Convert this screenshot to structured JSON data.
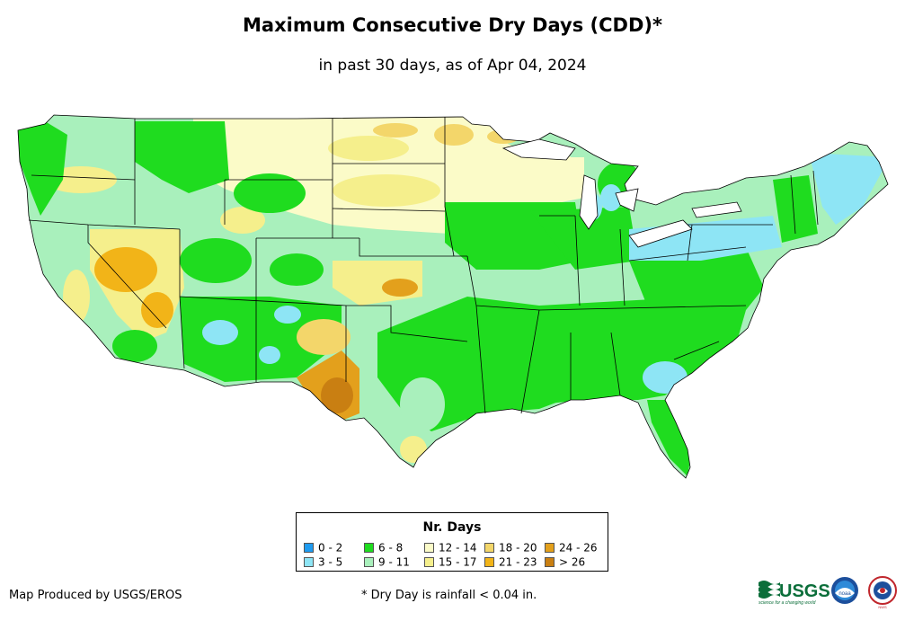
{
  "title": "Maximum Consecutive Dry Days (CDD)*",
  "subtitle": "in past 30 days, as of Apr 04, 2024",
  "legend": {
    "title": "Nr. Days",
    "items": [
      {
        "label": "0 - 2",
        "color": "#1e9bf0"
      },
      {
        "label": "3 - 5",
        "color": "#8ee5f5"
      },
      {
        "label": "6 - 8",
        "color": "#1fdc1f"
      },
      {
        "label": "9 - 11",
        "color": "#a9f0bc"
      },
      {
        "label": "12 - 14",
        "color": "#fbfbc8"
      },
      {
        "label": "15 - 17",
        "color": "#f5ef8c"
      },
      {
        "label": "18 - 20",
        "color": "#f3d66a"
      },
      {
        "label": "21 - 23",
        "color": "#f2b418"
      },
      {
        "label": "24 - 26",
        "color": "#e3a01c"
      },
      {
        "label": "> 26",
        "color": "#c97f12"
      }
    ]
  },
  "credit": "Map Produced by USGS/EROS",
  "footnote": "* Dry Day is rainfall < 0.04 in.",
  "logos": {
    "usgs": "USGS",
    "usgs_tagline": "science for a changing world",
    "noaa": "noaa",
    "nws": "NWS"
  }
}
